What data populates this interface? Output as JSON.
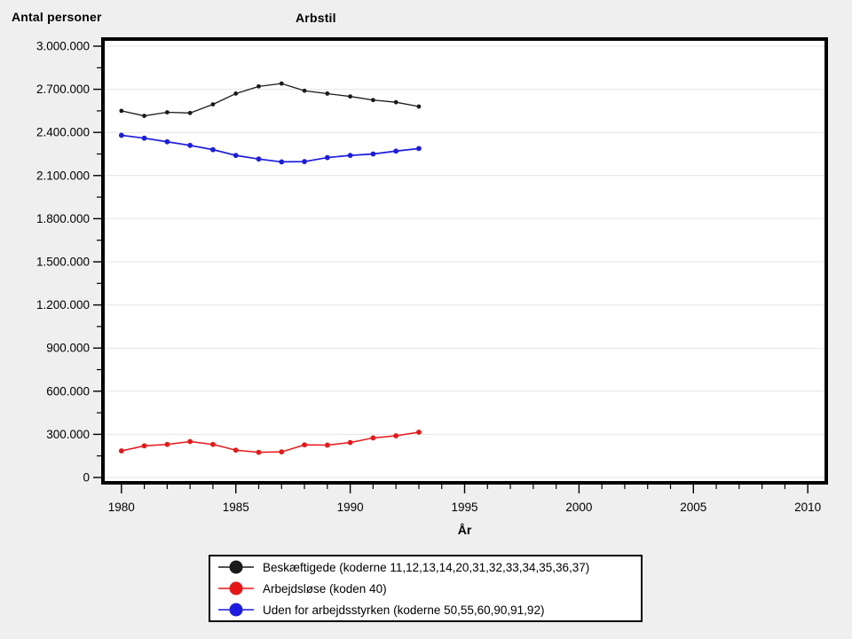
{
  "header": {
    "y_axis_title": "Antal personer",
    "chart_title": "Arbstil"
  },
  "chart_data": {
    "type": "line",
    "title": "Arbstil",
    "xlabel": "År",
    "ylabel": "Antal personer",
    "xlim": [
      1979.27,
      2010.73
    ],
    "ylim": [
      0,
      3000000
    ],
    "grid": "horizontal",
    "legend_position": "bottom",
    "x_major_ticks": [
      1980,
      1985,
      1990,
      1995,
      2000,
      2005,
      2010
    ],
    "x_tick_labels": [
      "1980",
      "1985",
      "1990",
      "1995",
      "2000",
      "2005",
      "2010"
    ],
    "x_minor_step": 1,
    "y_major_ticks": [
      0,
      300000,
      600000,
      900000,
      1200000,
      1500000,
      1800000,
      2100000,
      2400000,
      2700000,
      3000000
    ],
    "y_tick_labels": [
      "0",
      "300.000",
      "600.000",
      "900.000",
      "1.200.000",
      "1.500.000",
      "1.800.000",
      "2.100.000",
      "2.400.000",
      "2.700.000",
      "3.000.000"
    ],
    "y_minor_step": 150000,
    "x": [
      1980,
      1981,
      1982,
      1983,
      1984,
      1985,
      1986,
      1987,
      1988,
      1989,
      1990,
      1991,
      1992,
      1993
    ],
    "series": [
      {
        "id": "beskaeftigede",
        "name": "Beskæftigede (koderne 11,12,13,14,20,31,32,33,34,35,36,37)",
        "color": "#1a1a1a",
        "values": [
          2550000,
          2515000,
          2540000,
          2535000,
          2595000,
          2670000,
          2720000,
          2740000,
          2690000,
          2670000,
          2650000,
          2625000,
          2610000,
          2580000
        ]
      },
      {
        "id": "arbejdsloese",
        "name": "Arbejdsløse (koden 40)",
        "color": "#e81717",
        "values": [
          185000,
          220000,
          230000,
          250000,
          230000,
          190000,
          175000,
          178000,
          227000,
          225000,
          243000,
          275000,
          290000,
          315000
        ]
      },
      {
        "id": "uden-for-arbejdsstyrken",
        "name": "Uden for arbejdsstyrken (koderne 50,55,60,90,91,92)",
        "color": "#1c1ce0",
        "values": [
          2380000,
          2360000,
          2335000,
          2310000,
          2280000,
          2240000,
          2215000,
          2195000,
          2197000,
          2225000,
          2240000,
          2250000,
          2270000,
          2288000
        ]
      }
    ]
  },
  "colors": {
    "page_background": "#efefef",
    "plot_background": "#ffffff",
    "frame": "#000000",
    "gridline": "#e4e4e4"
  }
}
